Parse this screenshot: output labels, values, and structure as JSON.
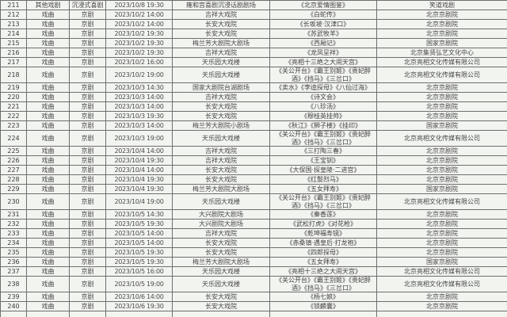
{
  "table": {
    "rows": [
      {
        "no": "211",
        "category": "其他戏剧",
        "genre": "沉浸式喜剧",
        "datetime": "2023/10/8 19:30",
        "venue": "雍和宫喜剧沉浸话剧剧场",
        "title": "《北京爱情图鉴》",
        "organizer": "笑道戏剧"
      },
      {
        "no": "212",
        "category": "戏曲",
        "genre": "京剧",
        "datetime": "2023/10/2 14:00",
        "venue": "吉祥大戏院",
        "title": "《白蛇传》",
        "organizer": "北京京剧院"
      },
      {
        "no": "213",
        "category": "戏曲",
        "genre": "京剧",
        "datetime": "2023/10/2 14:00",
        "venue": "长安大戏院",
        "title": "《长坂坡·汉津口》",
        "organizer": "北京京剧院"
      },
      {
        "no": "214",
        "category": "戏曲",
        "genre": "京剧",
        "datetime": "2023/10/2 19:30",
        "venue": "长安大戏院",
        "title": "《苏武牧羊》",
        "organizer": "北京京剧院"
      },
      {
        "no": "215",
        "category": "戏曲",
        "genre": "京剧",
        "datetime": "2023/10/2 19:30",
        "venue": "梅兰芳大剧院大剧场",
        "title": "《西厢记》",
        "organizer": "国家京剧院"
      },
      {
        "no": "216",
        "category": "戏曲",
        "genre": "京剧",
        "datetime": "2023/10/2 19:30",
        "venue": "吉祥大戏院",
        "title": "《龙凤呈祥》",
        "organizer": "北京集贤弘艺文化中心"
      },
      {
        "no": "217",
        "category": "戏曲",
        "genre": "京剧",
        "datetime": "2023/10/2 16:00",
        "venue": "天乐园大戏楼",
        "title": "《亮相十三绝之大闹天宫》",
        "organizer": "北京亮相文化传媒有限公司"
      },
      {
        "no": "218",
        "category": "戏曲",
        "genre": "京剧",
        "datetime": "2023/10/2 19:00",
        "venue": "天乐园大戏楼",
        "title": "《关公开台》《霸王别姬》《贵妃醉酒》《挡马》《三岔口》",
        "organizer": "北京亮相文化传媒有限公司"
      },
      {
        "no": "219",
        "category": "戏曲",
        "genre": "京剧",
        "datetime": "2023/10/3 14:30",
        "venue": "国家大剧院台湖剧场",
        "title": "《卖水》《李逵探母》《八仙过海》",
        "organizer": "北京京剧院"
      },
      {
        "no": "220",
        "category": "戏曲",
        "genre": "京剧",
        "datetime": "2023/10/3 14:00",
        "venue": "吉祥大戏院",
        "title": "《诗文会》",
        "organizer": "北京京剧院"
      },
      {
        "no": "221",
        "category": "戏曲",
        "genre": "京剧",
        "datetime": "2023/10/3 14:00",
        "venue": "长安大戏院",
        "title": "《八珍汤》",
        "organizer": "北京京剧院"
      },
      {
        "no": "222",
        "category": "戏曲",
        "genre": "京剧",
        "datetime": "2023/10/3 19:30",
        "venue": "长安大戏院",
        "title": "《穆桂英挂帅》",
        "organizer": "北京京剧院"
      },
      {
        "no": "223",
        "category": "戏曲",
        "genre": "京剧",
        "datetime": "2023/10/3 14:00",
        "venue": "梅兰芳大剧院小剧场",
        "title": "《秋江》《狮子楼》《挂印》",
        "organizer": "国家京剧院"
      },
      {
        "no": "224",
        "category": "戏曲",
        "genre": "京剧",
        "datetime": "2023/10/3 19:00",
        "venue": "天乐园大戏楼",
        "title": "《关公开台》《霸王别姬》《贵妃醉酒》《挡马》《三岔口》",
        "organizer": "北京亮相文化传媒有限公司"
      },
      {
        "no": "225",
        "category": "戏曲",
        "genre": "京剧",
        "datetime": "2023/10/4 14:00",
        "venue": "吉祥大戏院",
        "title": "《三打陶三春》",
        "organizer": "北京京剧院"
      },
      {
        "no": "226",
        "category": "戏曲",
        "genre": "京剧",
        "datetime": "2023/10/4 19:30",
        "venue": "吉祥大戏院",
        "title": "《王宝钏》",
        "organizer": "北京京剧院"
      },
      {
        "no": "227",
        "category": "戏曲",
        "genre": "京剧",
        "datetime": "2023/10/4 14:00",
        "venue": "长安大戏院",
        "title": "《大保国·探皇陵·二进宫》",
        "organizer": "北京京剧院"
      },
      {
        "no": "228",
        "category": "戏曲",
        "genre": "京剧",
        "datetime": "2023/10/4 19:30",
        "venue": "长安大戏院",
        "title": "《红鬃烈马》",
        "organizer": "北京京剧院"
      },
      {
        "no": "229",
        "category": "戏曲",
        "genre": "京剧",
        "datetime": "2023/10/4 19:30",
        "venue": "梅兰芳大剧院大剧场",
        "title": "《五女拜寿》",
        "organizer": "国家京剧院"
      },
      {
        "no": "230",
        "category": "戏曲",
        "genre": "京剧",
        "datetime": "2023/10/4 19:00",
        "venue": "天乐园大戏楼",
        "title": "《关公开台》《霸王别姬》《贵妃醉酒》《挡马》《三岔口》",
        "organizer": "北京亮相文化传媒有限公司"
      },
      {
        "no": "231",
        "category": "戏曲",
        "genre": "京剧",
        "datetime": "2023/10/5 14:30",
        "venue": "大兴剧院大剧场",
        "title": "《秦香莲》",
        "organizer": "北京京剧院"
      },
      {
        "no": "232",
        "category": "戏曲",
        "genre": "京剧",
        "datetime": "2023/10/5 19:30",
        "venue": "大兴剧院大剧场",
        "title": "《武松打虎》《对花枪》",
        "organizer": "北京京剧院"
      },
      {
        "no": "233",
        "category": "戏曲",
        "genre": "京剧",
        "datetime": "2023/10/5 14:00",
        "venue": "吉祥大戏院",
        "title": "《乾坤福寿镜》",
        "organizer": "北京京剧院"
      },
      {
        "no": "234",
        "category": "戏曲",
        "genre": "京剧",
        "datetime": "2023/10/5 14:00",
        "venue": "长安大戏院",
        "title": "《赤桑镇·遇皇后·打龙袍》",
        "organizer": "北京京剧院"
      },
      {
        "no": "235",
        "category": "戏曲",
        "genre": "京剧",
        "datetime": "2023/10/5 19:30",
        "venue": "长安大戏院",
        "title": "《四郎探母》",
        "organizer": "北京京剧院"
      },
      {
        "no": "236",
        "category": "戏曲",
        "genre": "京剧",
        "datetime": "2023/10/5 19:30",
        "venue": "梅兰芳大剧院大剧场",
        "title": "《五女拜寿》",
        "organizer": "国家京剧院"
      },
      {
        "no": "237",
        "category": "戏曲",
        "genre": "京剧",
        "datetime": "2023/10/5 16:00",
        "venue": "天乐园大戏楼",
        "title": "《亮相十三绝之大闹天宫》",
        "organizer": "北京亮相文化传媒有限公司"
      },
      {
        "no": "238",
        "category": "戏曲",
        "genre": "京剧",
        "datetime": "2023/10/5 19:00",
        "venue": "天乐园大戏楼",
        "title": "《关公开台》《霸王别姬》《贵妃醉酒》《挡马》《三岔口》",
        "organizer": "北京亮相文化传媒有限公司"
      },
      {
        "no": "239",
        "category": "戏曲",
        "genre": "京剧",
        "datetime": "2023/10/6 14:00",
        "venue": "长安大戏院",
        "title": "《杨七娘》",
        "organizer": "北京京剧院"
      },
      {
        "no": "240",
        "category": "戏曲",
        "genre": "京剧",
        "datetime": "2023/10/6 19:30",
        "venue": "长安大戏院",
        "title": "《锁麟囊》",
        "organizer": "北京京剧院"
      }
    ],
    "colors": {
      "row_background": "#f2f4f0",
      "border": "#6e6e6e",
      "text": "#474747"
    }
  }
}
